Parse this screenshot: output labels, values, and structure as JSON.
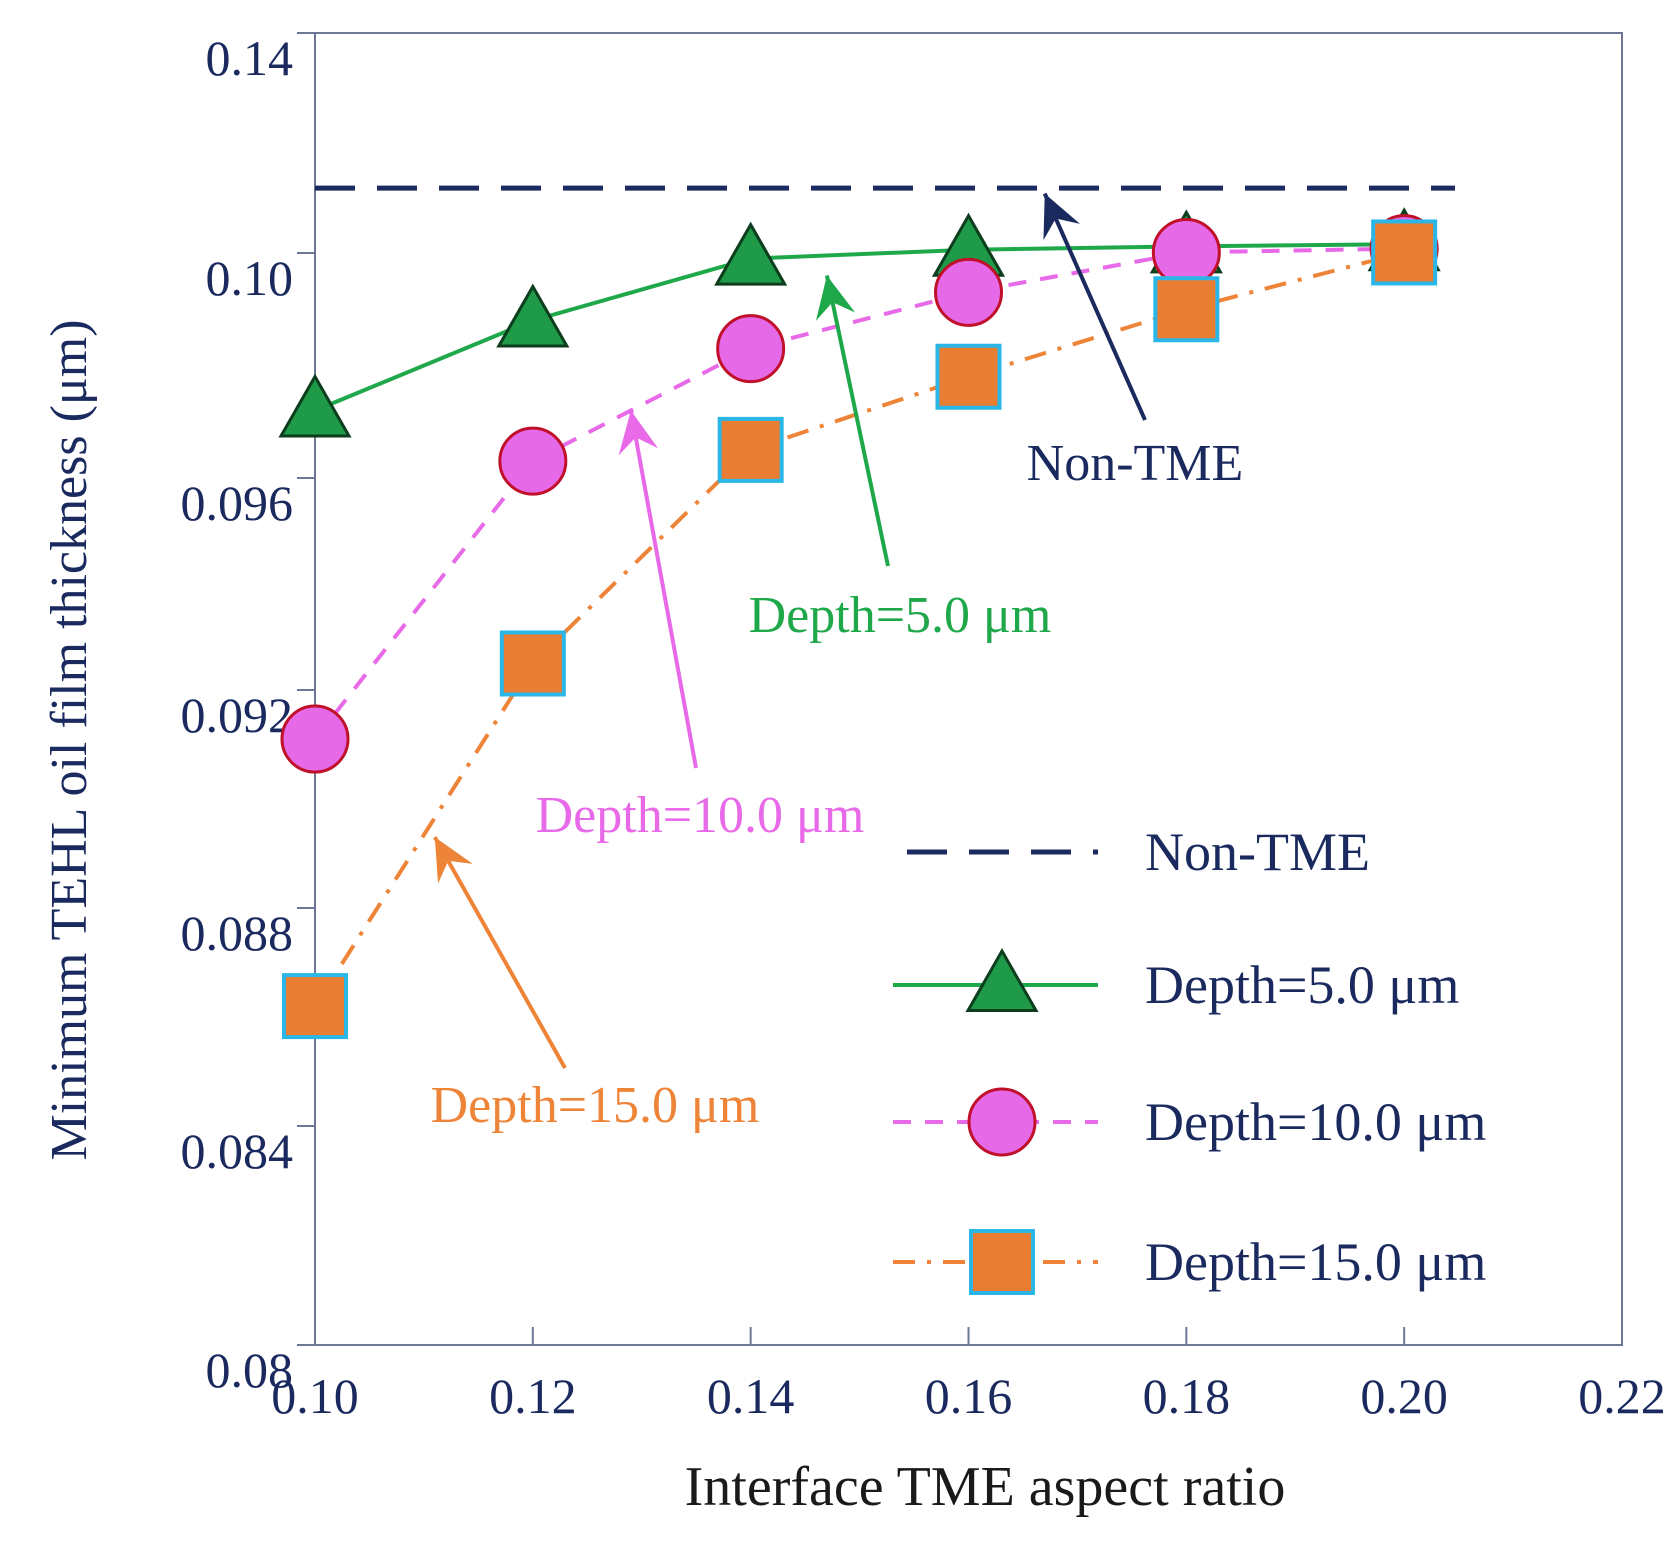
{
  "chart_data": {
    "type": "line",
    "title": "",
    "xlabel": "Interface TME aspect ratio",
    "ylabel": "Minimum TEHL oil film thickness (μm)",
    "xlim": [
      0.1,
      0.22
    ],
    "ylim": [
      0.08,
      0.14
    ],
    "xticks": [
      "0.10",
      "0.12",
      "0.14",
      "0.16",
      "0.18",
      "0.20",
      "0.22"
    ],
    "xtick_values": [
      0.1,
      0.12,
      0.14,
      0.16,
      0.18,
      0.2,
      0.22
    ],
    "yticks": [
      "0.08",
      "0.084",
      "0.088",
      "0.092",
      "0.096",
      "0.10",
      "0.14"
    ],
    "ytick_values": [
      0.08,
      0.084,
      0.088,
      0.092,
      0.096,
      0.1,
      0.14
    ],
    "x": [
      0.1,
      0.12,
      0.14,
      0.16,
      0.18,
      0.2
    ],
    "reference": {
      "name": "Non-TME",
      "value": 0.1118,
      "color": "#1a2a5e"
    },
    "series": [
      {
        "name": "Depth=5.0 μm",
        "color": "#1fa84a",
        "fill": "#1e9a48",
        "stroke": "#0c3d1c",
        "marker": "triangle",
        "values": [
          0.0972,
          0.0988,
          0.0999,
          0.1006,
          0.1012,
          0.1016
        ]
      },
      {
        "name": "Depth=10.0 μm",
        "color": "#e86ae8",
        "fill": "#e66ae8",
        "stroke": "#c0102a",
        "marker": "circle",
        "values": [
          0.0911,
          0.0963,
          0.0983,
          0.0993,
          0.1001,
          0.1008
        ]
      },
      {
        "name": "Depth=15.0 μm",
        "color": "#ee8438",
        "fill": "#e97d32",
        "stroke": "#2ab6e6",
        "marker": "square",
        "values": [
          0.0862,
          0.0925,
          0.0965,
          0.0978,
          0.099,
          0.1001
        ]
      }
    ],
    "legend": {
      "position": "lower-right",
      "labels": [
        "Non-TME",
        "Depth=5.0 μm",
        "Depth=10.0 μm",
        "Depth=15.0 μm"
      ]
    },
    "annotations": [
      {
        "text": "Non-TME",
        "color": "#1a2a5e",
        "arrow_to": [
          0.167,
          0.1108
        ]
      },
      {
        "text": "Depth=5.0 μm",
        "color": "#1fa84a",
        "arrow_to": [
          0.147,
          0.0996
        ]
      },
      {
        "text": "Depth=10.0 μm",
        "color": "#e86ae8",
        "arrow_to": [
          0.129,
          0.0972
        ]
      },
      {
        "text": "Depth=15.0 μm",
        "color": "#ee8438",
        "arrow_to": [
          0.111,
          0.0893
        ]
      }
    ]
  }
}
